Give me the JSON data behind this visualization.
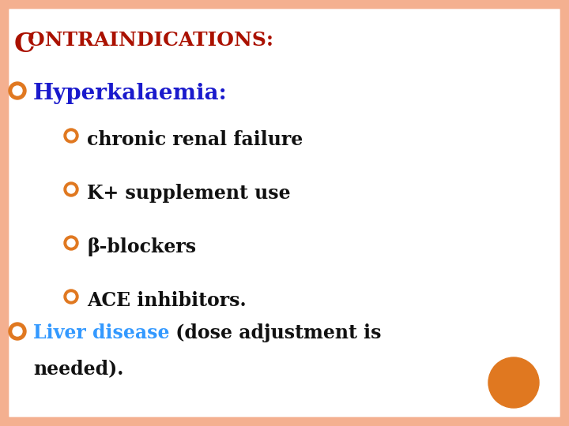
{
  "bg_color": "#ffffff",
  "border_color": "#f4b090",
  "title_C_color": "#aa1100",
  "title_rest_color": "#aa1100",
  "hyperkalaemia_bullet_color": "#e07820",
  "hyperkalaemia_text": "Hyperkalaemia:",
  "hyperkalaemia_color": "#1a1acc",
  "sub_items": [
    "chronic renal failure",
    "K+ supplement use",
    "β-blockers",
    "ACE inhibitors."
  ],
  "sub_bullet_color": "#e07820",
  "sub_text_color": "#111111",
  "liver_bullet_color": "#e07820",
  "liver_text_colored": "Liver disease",
  "liver_text_colored_color": "#3399ff",
  "liver_text_plain_1": " (dose adjustment is",
  "liver_text_plain_2": "needed).",
  "liver_text_plain_color": "#111111",
  "orange_circle_color": "#e07820",
  "title_fontsize": 18,
  "hyper_fontsize": 20,
  "sub_fontsize": 17,
  "liver_fontsize": 17
}
